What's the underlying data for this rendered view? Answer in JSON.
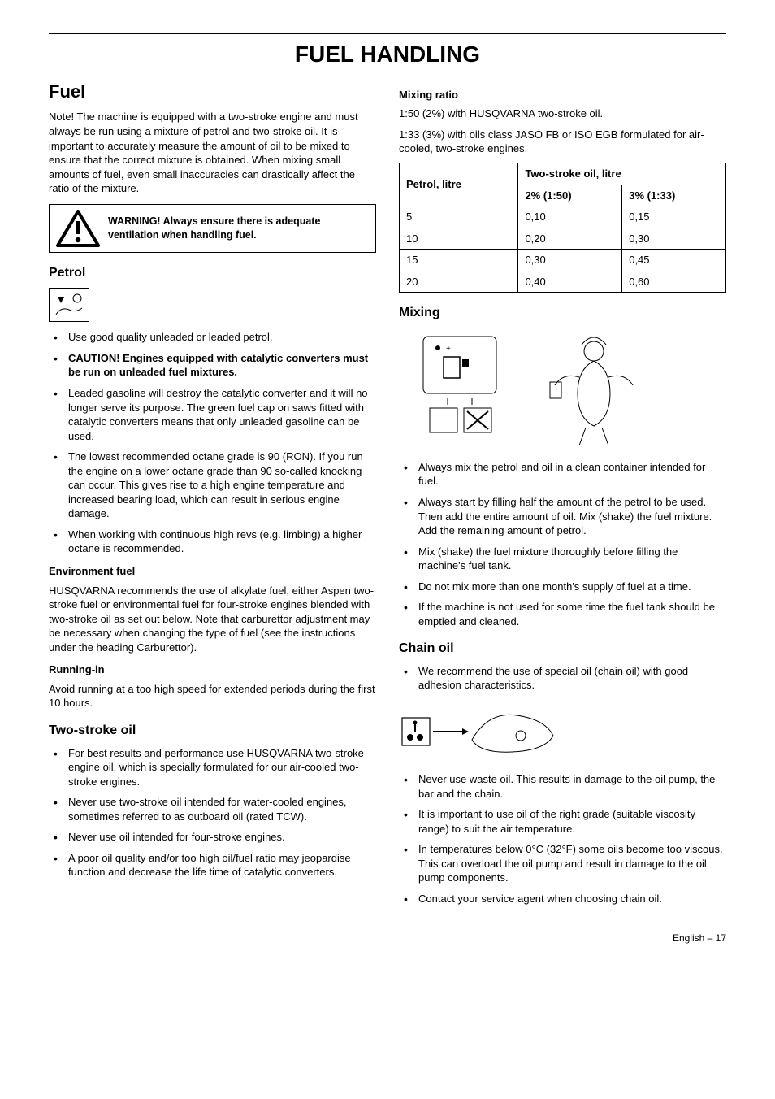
{
  "page_title": "FUEL HANDLING",
  "footer": "English – 17",
  "left": {
    "h2_fuel": "Fuel",
    "fuel_note": "Note! The machine is equipped with a two-stroke engine and must always be run using a mixture of petrol and two-stroke oil. It is important to accurately measure the amount of oil to be mixed to ensure that the correct mixture is obtained. When mixing small amounts of fuel, even small inaccuracies can drastically affect the ratio of the mixture.",
    "warning_text": "WARNING! Always ensure there is adequate ventilation when handling fuel.",
    "h3_petrol": "Petrol",
    "petrol_items": [
      {
        "text": "Use good quality unleaded or leaded petrol.",
        "bold": false
      },
      {
        "text": "CAUTION!  Engines equipped with catalytic converters must be run on unleaded fuel mixtures.",
        "bold": true
      },
      {
        "text": "Leaded gasoline will destroy the catalytic converter and it will no longer serve its purpose. The green fuel cap on saws fitted with catalytic converters means that only unleaded gasoline can be used.",
        "bold": false
      },
      {
        "text": "The lowest recommended octane grade is 90 (RON). If you run the engine on a lower octane grade than 90 so-called knocking can occur. This gives rise to a high engine temperature and increased bearing load, which can result in serious engine damage.",
        "bold": false
      },
      {
        "text": "When working with continuous high revs (e.g. limbing) a higher octane is recommended.",
        "bold": false
      }
    ],
    "h4_env": "Environment fuel",
    "env_text": "HUSQVARNA recommends the use of alkylate fuel, either Aspen two-stroke fuel or environmental fuel for four-stroke engines blended with two-stroke oil as set out below. Note that carburettor adjustment may be necessary when changing the type of fuel (see the instructions under the heading Carburettor).",
    "h4_runin": "Running-in",
    "runin_text": "Avoid running at a too high speed for extended periods during the first 10 hours.",
    "h3_twostroke": "Two-stroke oil",
    "twostroke_items": [
      "For best results and performance use HUSQVARNA two-stroke engine oil, which is specially formulated for our air-cooled two-stroke engines.",
      "Never use two-stroke oil intended for water-cooled engines, sometimes referred to as outboard oil (rated TCW).",
      "Never use oil intended for four-stroke engines.",
      "A poor oil quality and/or too high oil/fuel ratio may jeopardise function and decrease the life time of catalytic converters."
    ]
  },
  "right": {
    "h4_ratio": "Mixing ratio",
    "ratio_lines": [
      "1:50 (2%) with HUSQVARNA two-stroke oil.",
      "1:33 (3%) with oils class JASO FB or ISO EGB formulated for air-cooled, two-stroke engines."
    ],
    "table": {
      "col_petrol": "Petrol, litre",
      "col_oil": "Two-stroke oil, litre",
      "col_2pct": "2% (1:50)",
      "col_3pct": "3% (1:33)",
      "rows": [
        [
          "5",
          "0,10",
          "0,15"
        ],
        [
          "10",
          "0,20",
          "0,30"
        ],
        [
          "15",
          "0,30",
          "0,45"
        ],
        [
          "20",
          "0,40",
          "0,60"
        ]
      ]
    },
    "h3_mixing": "Mixing",
    "mixing_items": [
      "Always mix the petrol and oil in a clean container intended for fuel.",
      "Always start by filling half the amount of the petrol to be used. Then add the entire amount of oil. Mix (shake) the fuel mixture. Add the remaining amount of petrol.",
      "Mix (shake) the fuel mixture thoroughly before filling the machine's fuel tank.",
      "Do not mix more than one month's supply of fuel at a time.",
      "If the machine is not used for some time the fuel tank should be emptied and cleaned."
    ],
    "h3_chain": "Chain oil",
    "chain_first": "We recommend the use of special oil (chain oil) with good adhesion characteristics.",
    "chain_items": [
      "Never use waste oil. This results in damage to the oil pump, the bar and the chain.",
      "It is important to use oil of the right grade (suitable viscosity range) to suit the air temperature.",
      "In temperatures below 0°C (32°F) some oils become too viscous. This can overload the oil pump and result in damage to the oil pump components.",
      "Contact your service agent when choosing chain oil."
    ]
  }
}
